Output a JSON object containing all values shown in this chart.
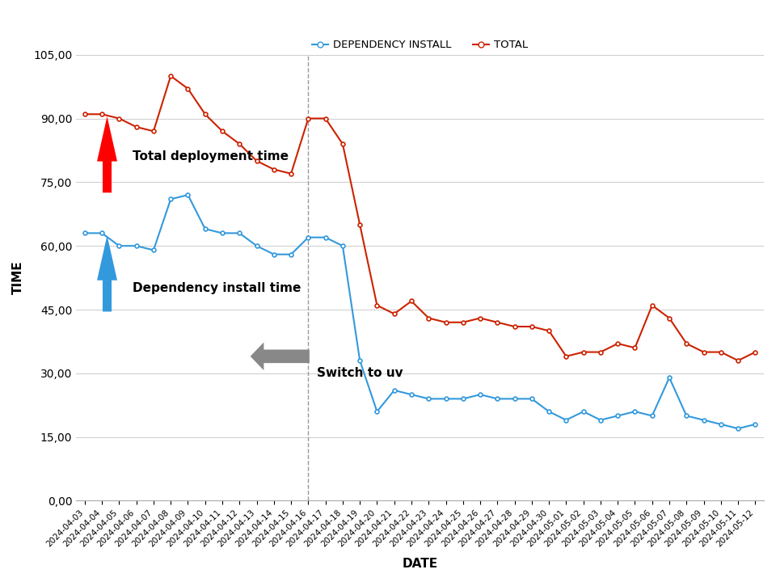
{
  "dates": [
    "2024-04-03",
    "2024-04-04",
    "2024-04-05",
    "2024-04-06",
    "2024-04-07",
    "2024-04-08",
    "2024-04-09",
    "2024-04-10",
    "2024-04-11",
    "2024-04-12",
    "2024-04-13",
    "2024-04-14",
    "2024-04-15",
    "2024-04-16",
    "2024-04-17",
    "2024-04-18",
    "2024-04-19",
    "2024-04-20",
    "2024-04-21",
    "2024-04-22",
    "2024-04-23",
    "2024-04-24",
    "2024-04-25",
    "2024-04-26",
    "2024-04-27",
    "2024-04-28",
    "2024-04-29",
    "2024-04-30",
    "2024-05-01",
    "2024-05-02",
    "2024-05-03",
    "2024-05-04",
    "2024-05-05",
    "2024-05-06",
    "2024-05-07",
    "2024-05-08",
    "2024-05-09",
    "2024-05-10",
    "2024-05-11",
    "2024-05-12"
  ],
  "total": [
    91,
    91,
    90,
    88,
    87,
    100,
    97,
    91,
    87,
    84,
    80,
    78,
    77,
    90,
    90,
    84,
    65,
    46,
    44,
    47,
    43,
    42,
    42,
    43,
    42,
    41,
    41,
    40,
    34,
    35,
    35,
    37,
    36,
    46,
    43,
    37,
    35,
    35,
    33,
    35
  ],
  "dependency_install": [
    63,
    63,
    60,
    60,
    59,
    71,
    72,
    64,
    63,
    63,
    60,
    58,
    58,
    62,
    62,
    60,
    33,
    21,
    26,
    25,
    24,
    24,
    24,
    25,
    24,
    24,
    24,
    21,
    19,
    21,
    19,
    20,
    21,
    20,
    29,
    20,
    19,
    18,
    17,
    18
  ],
  "vline_index": 13,
  "total_color": "#cc2200",
  "dep_color": "#3399dd",
  "bg_color": "#ffffff",
  "grid_color": "#cccccc",
  "ylim": [
    0,
    105
  ],
  "yticks": [
    0,
    15,
    30,
    45,
    60,
    75,
    90,
    105
  ],
  "ytick_labels": [
    "0,00",
    "15,00",
    "30,00",
    "45,00",
    "60,00",
    "75,00",
    "90,00",
    "105,00"
  ],
  "xlabel": "DATE",
  "ylabel": "TIME",
  "legend_dep_label": "DEPENDENCY INSTALL",
  "legend_total_label": "TOTAL",
  "annotation_total": "Total deployment time",
  "annotation_dep": "Dependency install time",
  "annotation_switch": "Switch to uv"
}
